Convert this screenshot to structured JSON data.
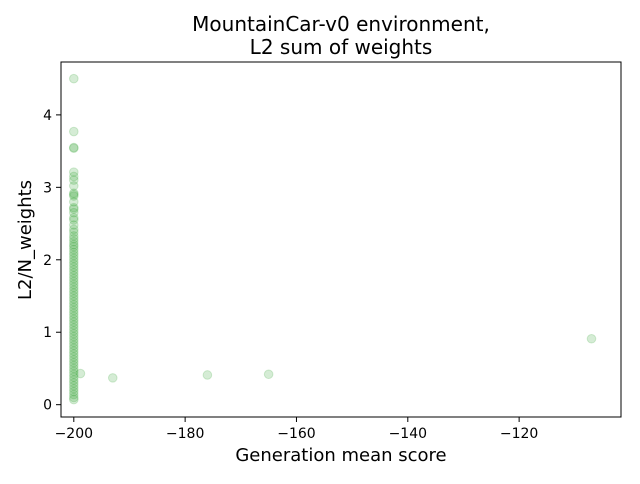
{
  "chart_data": {
    "type": "scatter",
    "title_lines": [
      "MountainCar-v0 environment,",
      "L2 sum of weights"
    ],
    "xlabel": "Generation mean score",
    "ylabel": "L2/N_weights",
    "xlim": [
      -202.3,
      -101.7
    ],
    "ylim": [
      -0.17,
      4.73
    ],
    "x_ticks": [
      -200,
      -180,
      -160,
      -140,
      -120
    ],
    "x_tick_labels": [
      "−200",
      "−180",
      "−160",
      "−140",
      "−120"
    ],
    "y_ticks": [
      0,
      1,
      2,
      3,
      4
    ],
    "y_tick_labels": [
      "0",
      "1",
      "2",
      "3",
      "4"
    ],
    "grid": false,
    "marker_color": "#2ca02c",
    "marker_alpha": 0.2,
    "series": [
      {
        "points": [
          [
            -200,
            4.5
          ],
          [
            -200,
            3.77
          ],
          [
            -200,
            3.55
          ],
          [
            -200,
            3.54
          ],
          [
            -200,
            3.21
          ],
          [
            -200,
            3.15
          ],
          [
            -200,
            3.1
          ],
          [
            -200,
            3.02
          ],
          [
            -200,
            2.92
          ],
          [
            -200,
            2.9
          ],
          [
            -200,
            2.88
          ],
          [
            -200,
            2.8
          ],
          [
            -200,
            2.72
          ],
          [
            -200,
            2.7
          ],
          [
            -200,
            2.65
          ],
          [
            -200,
            2.58
          ],
          [
            -200,
            2.55
          ],
          [
            -200,
            2.48
          ],
          [
            -200,
            2.42
          ],
          [
            -200,
            2.38
          ],
          [
            -200,
            2.33
          ],
          [
            -200,
            2.29
          ],
          [
            -200,
            2.25
          ],
          [
            -200,
            2.21
          ],
          [
            -200,
            2.18
          ],
          [
            -200,
            2.14
          ],
          [
            -200,
            2.1
          ],
          [
            -200,
            2.06
          ],
          [
            -200,
            2.02
          ],
          [
            -200,
            1.98
          ],
          [
            -200,
            1.94
          ],
          [
            -200,
            1.9
          ],
          [
            -200,
            1.86
          ],
          [
            -200,
            1.82
          ],
          [
            -200,
            1.78
          ],
          [
            -200,
            1.74
          ],
          [
            -200,
            1.7
          ],
          [
            -200,
            1.66
          ],
          [
            -200,
            1.62
          ],
          [
            -200,
            1.58
          ],
          [
            -200,
            1.54
          ],
          [
            -200,
            1.5
          ],
          [
            -200,
            1.46
          ],
          [
            -200,
            1.42
          ],
          [
            -200,
            1.38
          ],
          [
            -200,
            1.34
          ],
          [
            -200,
            1.3
          ],
          [
            -200,
            1.26
          ],
          [
            -200,
            1.22
          ],
          [
            -200,
            1.18
          ],
          [
            -200,
            1.14
          ],
          [
            -200,
            1.1
          ],
          [
            -200,
            1.06
          ],
          [
            -200,
            1.02
          ],
          [
            -200,
            0.98
          ],
          [
            -200,
            0.94
          ],
          [
            -200,
            0.9
          ],
          [
            -200,
            0.86
          ],
          [
            -200,
            0.82
          ],
          [
            -200,
            0.78
          ],
          [
            -200,
            0.74
          ],
          [
            -200,
            0.7
          ],
          [
            -200,
            0.66
          ],
          [
            -200,
            0.62
          ],
          [
            -200,
            0.58
          ],
          [
            -200,
            0.54
          ],
          [
            -200,
            0.5
          ],
          [
            -200,
            0.46
          ],
          [
            -200,
            0.42
          ],
          [
            -200,
            0.38
          ],
          [
            -200,
            0.34
          ],
          [
            -200,
            0.3
          ],
          [
            -200,
            0.26
          ],
          [
            -200,
            0.22
          ],
          [
            -200,
            0.18
          ],
          [
            -200,
            0.14
          ],
          [
            -200,
            0.1
          ],
          [
            -200,
            0.07
          ],
          [
            -198.8,
            0.43
          ],
          [
            -193.0,
            0.37
          ],
          [
            -176.0,
            0.41
          ],
          [
            -165.0,
            0.42
          ],
          [
            -107.0,
            0.91
          ]
        ]
      }
    ]
  }
}
